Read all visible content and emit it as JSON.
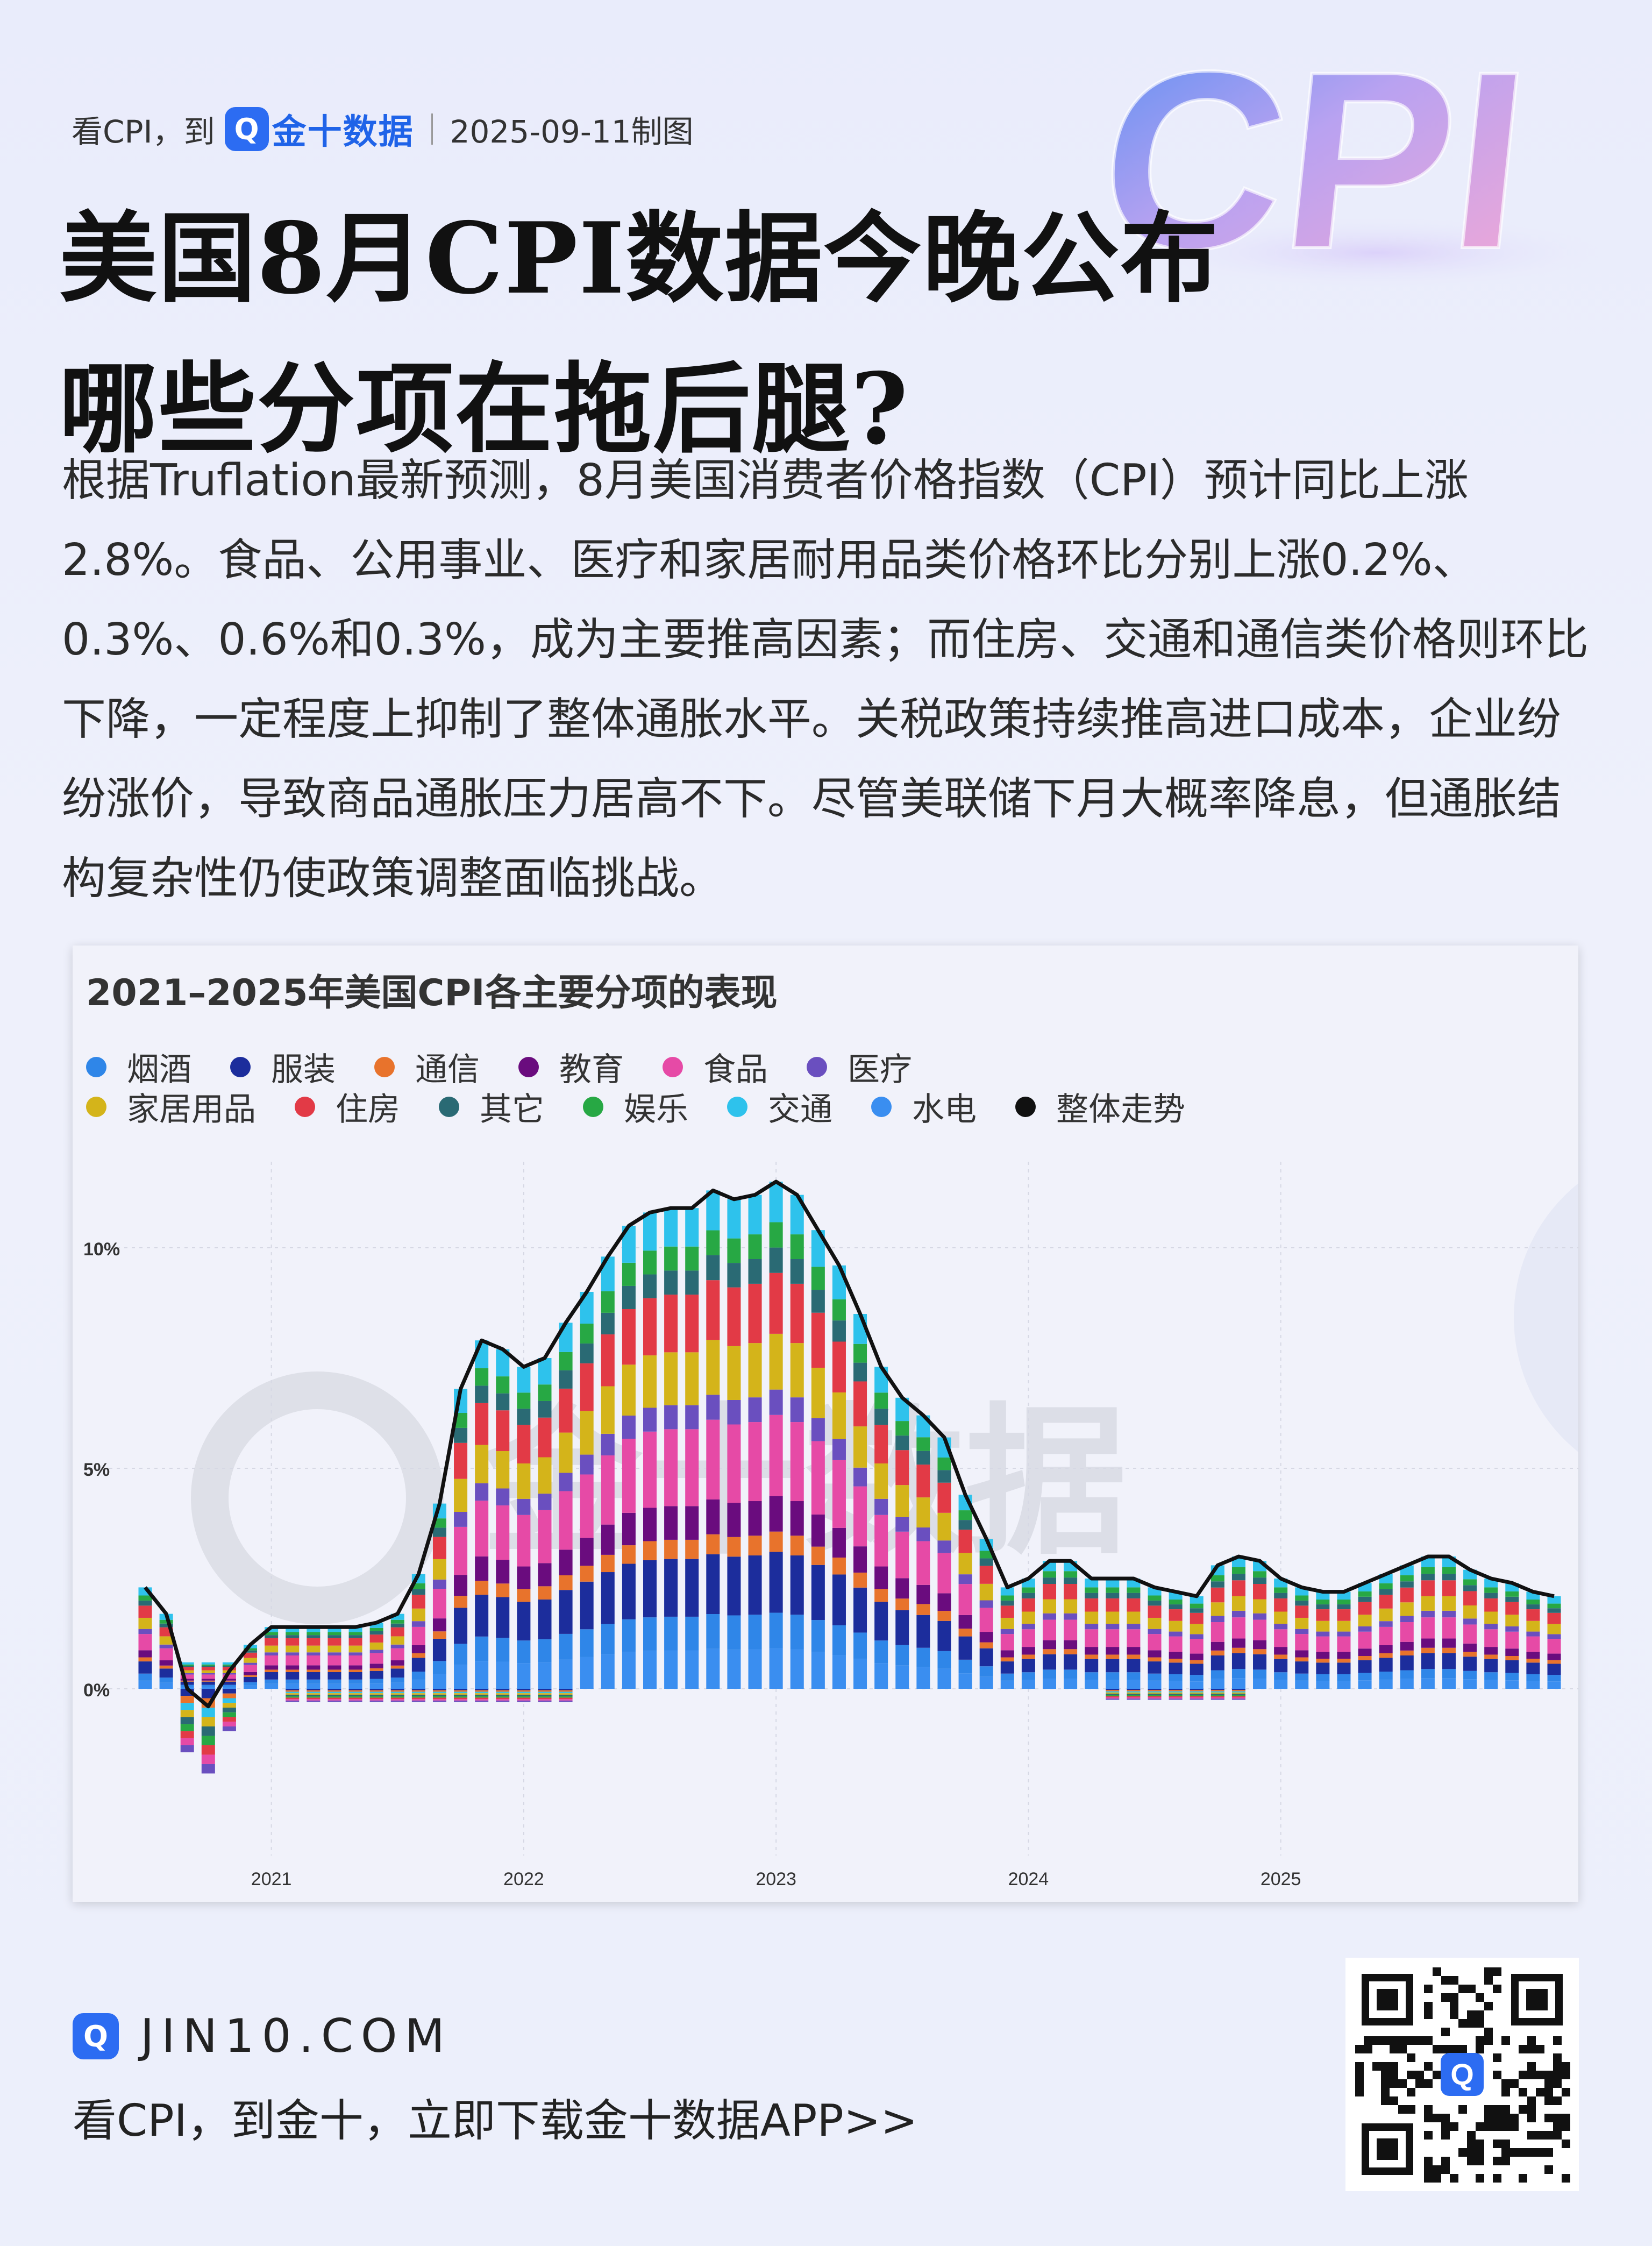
{
  "header": {
    "prefix": "看CPI，到",
    "brand": "金十数据",
    "date": "2025-09-11制图",
    "badge_word": "CPI"
  },
  "title": {
    "line1": "美国8月CPI数据今晚公布",
    "line2": "哪些分项在拖后腿?"
  },
  "intro": "根据Truflation最新预测，8月美国消费者价格指数（CPI）预计同比上涨2.8%。食品、公用事业、医疗和家居耐用品类价格环比分别上涨0.2%、0.3%、0.6%和0.3%，成为主要推高因素；而住房、交通和通信类价格则环比下降，一定程度上抑制了整体通胀水平。关税政策持续推高进口成本，企业纷纷涨价，导致商品通胀压力居高不下。尽管美联储下月大概率降息，但通胀结构复杂性仍使政策调整面临挑战。",
  "chart_data": {
    "type": "bar",
    "stacked": true,
    "title": "2021–2025年美国CPI各主要分项的表现",
    "y_ticks": [
      "0%",
      "5%",
      "10%"
    ],
    "y_range": [
      -3,
      12
    ],
    "x_ticks": [
      "2021",
      "2022",
      "2023",
      "2024",
      "2025"
    ],
    "grid": true,
    "legend_position": "top-left",
    "watermark": "金十数据",
    "series": [
      {
        "name": "烟酒",
        "color": "#2f86e8"
      },
      {
        "name": "服装",
        "color": "#1c2d9c"
      },
      {
        "name": "通信",
        "color": "#e8732c"
      },
      {
        "name": "教育",
        "color": "#6a0c7e"
      },
      {
        "name": "食品",
        "color": "#e64aa6"
      },
      {
        "name": "医疗",
        "color": "#6a4fbf"
      },
      {
        "name": "家居用品",
        "color": "#d4b41a"
      },
      {
        "name": "住房",
        "color": "#e23a46"
      },
      {
        "name": "其它",
        "color": "#2a6a74"
      },
      {
        "name": "娱乐",
        "color": "#27a844"
      },
      {
        "name": "交通",
        "color": "#2ec2ec"
      },
      {
        "name": "水电",
        "color": "#3a8ef0"
      },
      {
        "name": "整体走势",
        "color": "#111111"
      }
    ],
    "months_start": "2020-07",
    "total": [
      2.3,
      1.7,
      0.0,
      -0.4,
      0.4,
      1.0,
      1.4,
      1.4,
      1.4,
      1.4,
      1.4,
      1.5,
      1.7,
      2.6,
      4.2,
      6.8,
      7.9,
      7.7,
      7.3,
      7.5,
      8.3,
      9.0,
      9.8,
      10.5,
      10.8,
      10.9,
      10.9,
      11.3,
      11.1,
      11.2,
      11.5,
      11.2,
      10.4,
      9.6,
      8.5,
      7.3,
      6.6,
      6.2,
      5.7,
      4.4,
      3.4,
      2.3,
      2.5,
      2.9,
      2.9,
      2.5,
      2.5,
      2.5,
      2.3,
      2.2,
      2.1,
      2.8,
      3.0,
      2.9,
      2.5,
      2.3,
      2.2,
      2.2,
      2.4,
      2.6,
      2.8,
      3.0,
      3.0,
      2.7,
      2.5,
      2.4,
      2.2,
      2.1
    ],
    "series_labeled": [
      "烟酒",
      "服装",
      "通信",
      "教育",
      "食品",
      "医疗",
      "家居用品",
      "住房",
      "其它",
      "娱乐",
      "交通",
      "水电"
    ],
    "negative_months": {
      "2020-10": [
        -0.3,
        -0.3,
        -0.3,
        -0.3,
        -0.3,
        -0.3,
        -0.3,
        -0.3,
        -0.3
      ],
      "2020-11": [
        -0.3,
        -0.3,
        -0.3,
        -0.3,
        -0.3,
        -0.3,
        -0.3,
        -0.3,
        -0.3
      ]
    }
  },
  "footer": {
    "url": "JIN10.COM",
    "cta": "看CPI，到金十，立即下载金十数据APP>>"
  }
}
